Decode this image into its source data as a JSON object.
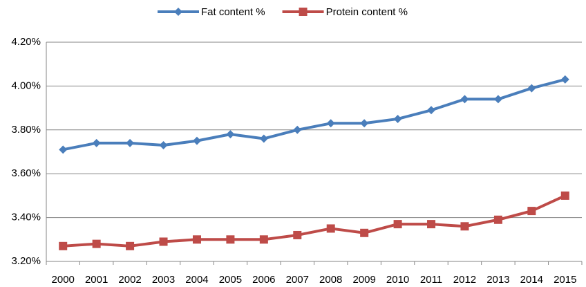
{
  "chart_data": {
    "type": "line",
    "categories": [
      "2000",
      "2001",
      "2002",
      "2003",
      "2004",
      "2005",
      "2006",
      "2007",
      "2008",
      "2009",
      "2010",
      "2011",
      "2012",
      "2013",
      "2014",
      "2015"
    ],
    "series": [
      {
        "name": "Fat content %",
        "color": "#4a7ebb",
        "marker": "diamond",
        "values": [
          3.71,
          3.74,
          3.74,
          3.73,
          3.75,
          3.78,
          3.76,
          3.8,
          3.83,
          3.83,
          3.85,
          3.89,
          3.94,
          3.94,
          3.99,
          4.03
        ]
      },
      {
        "name": "Protein content %",
        "color": "#be4b48",
        "marker": "square",
        "values": [
          3.27,
          3.28,
          3.27,
          3.29,
          3.3,
          3.3,
          3.3,
          3.32,
          3.35,
          3.33,
          3.37,
          3.37,
          3.36,
          3.39,
          3.43,
          3.5
        ]
      }
    ],
    "ylim": [
      3.2,
      4.2
    ],
    "yticks": [
      {
        "value": 3.2,
        "label": "3.20%"
      },
      {
        "value": 3.4,
        "label": "3.40%"
      },
      {
        "value": 3.6,
        "label": "3.60%"
      },
      {
        "value": 3.8,
        "label": "3.80%"
      },
      {
        "value": 4.0,
        "label": "4.00%"
      },
      {
        "value": 4.2,
        "label": "4.20%"
      }
    ],
    "grid": true,
    "legend": "top"
  }
}
